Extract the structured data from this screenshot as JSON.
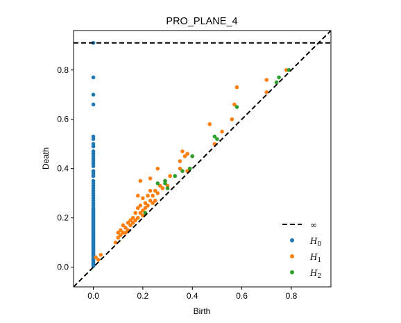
{
  "chart_data": {
    "type": "scatter",
    "title": "PRO_PLANE_4",
    "xlabel": "Birth",
    "ylabel": "Death",
    "xlim": [
      -0.08,
      0.96
    ],
    "ylim": [
      -0.08,
      0.96
    ],
    "xticks": [
      "0.0",
      "0.2",
      "0.4",
      "0.6",
      "0.8"
    ],
    "yticks": [
      "0.0",
      "0.2",
      "0.4",
      "0.6",
      "0.8"
    ],
    "grid": false,
    "legend_position": "lower-right",
    "infinity_line": {
      "label": "∞",
      "y": 0.91,
      "style": "dashed",
      "color": "#000000"
    },
    "diagonal": {
      "style": "dashed",
      "color": "#000000"
    },
    "series": [
      {
        "name": "H",
        "subscript": "0",
        "color": "#1f77b4",
        "points": [
          [
            0,
            0.91
          ],
          [
            0,
            0.77
          ],
          [
            0,
            0.7
          ],
          [
            0,
            0.66
          ],
          [
            0,
            0.53
          ],
          [
            0,
            0.52
          ],
          [
            0,
            0.5
          ],
          [
            0,
            0.49
          ],
          [
            0,
            0.47
          ],
          [
            0,
            0.46
          ],
          [
            0,
            0.45
          ],
          [
            0,
            0.44
          ],
          [
            0,
            0.43
          ],
          [
            0,
            0.42
          ],
          [
            0,
            0.41
          ],
          [
            0,
            0.39
          ],
          [
            0,
            0.38
          ],
          [
            0,
            0.37
          ],
          [
            0,
            0.35
          ],
          [
            0,
            0.34
          ],
          [
            0,
            0.33
          ],
          [
            0,
            0.32
          ],
          [
            0,
            0.31
          ],
          [
            0,
            0.3
          ],
          [
            0,
            0.29
          ],
          [
            0,
            0.28
          ],
          [
            0,
            0.27
          ],
          [
            0,
            0.26
          ],
          [
            0,
            0.25
          ],
          [
            0,
            0.24
          ],
          [
            0,
            0.235
          ],
          [
            0,
            0.23
          ],
          [
            0,
            0.225
          ],
          [
            0,
            0.22
          ],
          [
            0,
            0.215
          ],
          [
            0,
            0.21
          ],
          [
            0,
            0.205
          ],
          [
            0,
            0.2
          ],
          [
            0,
            0.195
          ],
          [
            0,
            0.19
          ],
          [
            0,
            0.185
          ],
          [
            0,
            0.18
          ],
          [
            0,
            0.175
          ],
          [
            0,
            0.17
          ],
          [
            0,
            0.165
          ],
          [
            0,
            0.16
          ],
          [
            0,
            0.155
          ],
          [
            0,
            0.15
          ],
          [
            0,
            0.145
          ],
          [
            0,
            0.14
          ],
          [
            0,
            0.135
          ],
          [
            0,
            0.13
          ],
          [
            0,
            0.125
          ],
          [
            0,
            0.12
          ],
          [
            0,
            0.115
          ],
          [
            0,
            0.11
          ],
          [
            0,
            0.105
          ],
          [
            0,
            0.1
          ],
          [
            0,
            0.095
          ],
          [
            0,
            0.09
          ],
          [
            0,
            0.085
          ],
          [
            0,
            0.08
          ],
          [
            0,
            0.075
          ],
          [
            0,
            0.07
          ],
          [
            0,
            0.065
          ],
          [
            0,
            0.06
          ],
          [
            0,
            0.055
          ],
          [
            0,
            0.05
          ],
          [
            0,
            0.045
          ],
          [
            0,
            0.04
          ],
          [
            0,
            0.035
          ],
          [
            0,
            0.03
          ],
          [
            0,
            0.025
          ],
          [
            0,
            0.02
          ],
          [
            0,
            0.015
          ],
          [
            0,
            0.01
          ],
          [
            0,
            0.005
          ]
        ]
      },
      {
        "name": "H",
        "subscript": "1",
        "color": "#ff7f0e",
        "points": [
          [
            0.01,
            0.04
          ],
          [
            0.03,
            0.05
          ],
          [
            0.02,
            0.03
          ],
          [
            0.09,
            0.1
          ],
          [
            0.1,
            0.12
          ],
          [
            0.1,
            0.14
          ],
          [
            0.11,
            0.13
          ],
          [
            0.11,
            0.15
          ],
          [
            0.12,
            0.14
          ],
          [
            0.12,
            0.17
          ],
          [
            0.13,
            0.16
          ],
          [
            0.13,
            0.14
          ],
          [
            0.14,
            0.18
          ],
          [
            0.14,
            0.15
          ],
          [
            0.15,
            0.17
          ],
          [
            0.15,
            0.19
          ],
          [
            0.16,
            0.18
          ],
          [
            0.16,
            0.2
          ],
          [
            0.17,
            0.19
          ],
          [
            0.17,
            0.22
          ],
          [
            0.18,
            0.2
          ],
          [
            0.18,
            0.24
          ],
          [
            0.18,
            0.29
          ],
          [
            0.19,
            0.22
          ],
          [
            0.19,
            0.25
          ],
          [
            0.2,
            0.23
          ],
          [
            0.2,
            0.21
          ],
          [
            0.2,
            0.28
          ],
          [
            0.21,
            0.24
          ],
          [
            0.21,
            0.26
          ],
          [
            0.22,
            0.25
          ],
          [
            0.22,
            0.29
          ],
          [
            0.23,
            0.27
          ],
          [
            0.23,
            0.31
          ],
          [
            0.24,
            0.26
          ],
          [
            0.24,
            0.29
          ],
          [
            0.25,
            0.31
          ],
          [
            0.25,
            0.27
          ],
          [
            0.26,
            0.3
          ],
          [
            0.27,
            0.33
          ],
          [
            0.28,
            0.32
          ],
          [
            0.29,
            0.35
          ],
          [
            0.3,
            0.33
          ],
          [
            0.31,
            0.37
          ],
          [
            0.19,
            0.35
          ],
          [
            0.23,
            0.36
          ],
          [
            0.26,
            0.4
          ],
          [
            0.35,
            0.4
          ],
          [
            0.35,
            0.43
          ],
          [
            0.36,
            0.47
          ],
          [
            0.37,
            0.45
          ],
          [
            0.38,
            0.46
          ],
          [
            0.38,
            0.39
          ],
          [
            0.39,
            0.4
          ],
          [
            0.4,
            0.45
          ],
          [
            0.47,
            0.58
          ],
          [
            0.49,
            0.5
          ],
          [
            0.52,
            0.55
          ],
          [
            0.56,
            0.6
          ],
          [
            0.57,
            0.66
          ],
          [
            0.58,
            0.73
          ],
          [
            0.7,
            0.76
          ],
          [
            0.7,
            0.71
          ],
          [
            0.74,
            0.75
          ],
          [
            0.78,
            0.8
          ]
        ]
      },
      {
        "name": "H",
        "subscript": "2",
        "color": "#2ca02c",
        "points": [
          [
            0.21,
            0.22
          ],
          [
            0.26,
            0.34
          ],
          [
            0.29,
            0.34
          ],
          [
            0.29,
            0.35
          ],
          [
            0.3,
            0.32
          ],
          [
            0.33,
            0.37
          ],
          [
            0.36,
            0.39
          ],
          [
            0.39,
            0.4
          ],
          [
            0.4,
            0.45
          ],
          [
            0.49,
            0.53
          ],
          [
            0.5,
            0.52
          ],
          [
            0.58,
            0.65
          ],
          [
            0.74,
            0.75
          ],
          [
            0.75,
            0.77
          ],
          [
            0.79,
            0.8
          ]
        ]
      }
    ]
  }
}
